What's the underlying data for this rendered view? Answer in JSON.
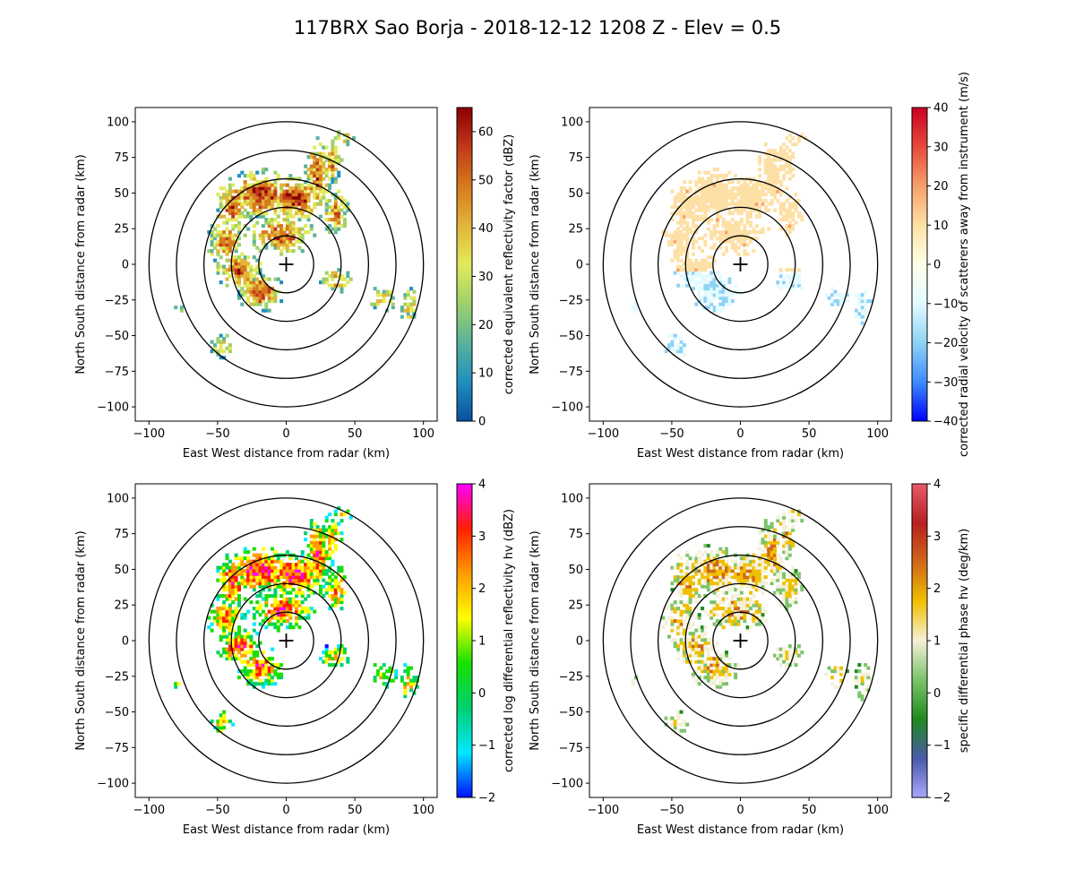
{
  "figure": {
    "title": "117BRX Sao Borja - 2018-12-12 1208 Z -  Elev = 0.5"
  },
  "chart_data": [
    {
      "type": "heatmap",
      "title": "",
      "xlabel": "East West distance from radar (km)",
      "ylabel": "North South distance from radar (km)",
      "xlim": [
        -110,
        110
      ],
      "ylim": [
        -110,
        110
      ],
      "xticks": [
        -100,
        -50,
        0,
        50,
        100
      ],
      "yticks": [
        -100,
        -75,
        -50,
        -25,
        0,
        25,
        50,
        75,
        100
      ],
      "range_rings_km": [
        20,
        40,
        60,
        80,
        100
      ],
      "colorbar": {
        "label": "corrected equivalent reflectivity factor (dBZ)",
        "range": [
          0,
          65
        ],
        "ticks": [
          0,
          10,
          20,
          30,
          40,
          50,
          60
        ],
        "colors": [
          "#0a4f9c",
          "#1f8fbf",
          "#5ab39a",
          "#9fd06b",
          "#e2ea5a",
          "#e2b43a",
          "#d67a1c",
          "#c0391a",
          "#8a0000"
        ]
      }
    },
    {
      "type": "heatmap",
      "title": "",
      "xlabel": "East West distance from radar (km)",
      "ylabel": "North South distance from radar (km)",
      "xlim": [
        -110,
        110
      ],
      "ylim": [
        -110,
        110
      ],
      "xticks": [
        -100,
        -50,
        0,
        50,
        100
      ],
      "yticks": [
        -100,
        -75,
        -50,
        -25,
        0,
        25,
        50,
        75,
        100
      ],
      "range_rings_km": [
        20,
        40,
        60,
        80,
        100
      ],
      "colorbar": {
        "label": "corrected radial velocity of scatterers away from instrument (m/s)",
        "range": [
          -40,
          40
        ],
        "ticks": [
          -40,
          -30,
          -20,
          -10,
          0,
          10,
          20,
          30,
          40
        ],
        "colors": [
          "#0000ff",
          "#3d8cff",
          "#8fd2f5",
          "#e2fbff",
          "#ffffe8",
          "#fde0a6",
          "#f7a06a",
          "#e64a3a",
          "#cc0022"
        ]
      }
    },
    {
      "type": "heatmap",
      "title": "",
      "xlabel": "East West distance from radar (km)",
      "ylabel": "North South distance from radar (km)",
      "xlim": [
        -110,
        110
      ],
      "ylim": [
        -110,
        110
      ],
      "xticks": [
        -100,
        -50,
        0,
        50,
        100
      ],
      "yticks": [
        -100,
        -75,
        -50,
        -25,
        0,
        25,
        50,
        75,
        100
      ],
      "range_rings_km": [
        20,
        40,
        60,
        80,
        100
      ],
      "colorbar": {
        "label": "corrected log differential reflectivity hv (dBZ)",
        "range": [
          -2,
          4
        ],
        "ticks": [
          -2,
          -1,
          0,
          1,
          2,
          3,
          4
        ],
        "colors": [
          "#0010ff",
          "#00e8ff",
          "#00d070",
          "#18e000",
          "#ffff00",
          "#ff9c00",
          "#ff1f00",
          "#ff00ff"
        ]
      }
    },
    {
      "type": "heatmap",
      "title": "",
      "xlabel": "East West distance from radar (km)",
      "ylabel": "North South distance from radar (km)",
      "xlim": [
        -110,
        110
      ],
      "ylim": [
        -110,
        110
      ],
      "xticks": [
        -100,
        -50,
        0,
        50,
        100
      ],
      "yticks": [
        -100,
        -75,
        -50,
        -25,
        0,
        25,
        50,
        75,
        100
      ],
      "range_rings_km": [
        20,
        40,
        60,
        80,
        100
      ],
      "colorbar": {
        "label": "specific differential phase hv (deg/km)",
        "range": [
          -2,
          4
        ],
        "ticks": [
          -2,
          -1,
          0,
          1,
          2,
          3,
          4
        ],
        "colors": [
          "#a8a8ff",
          "#4a5aa8",
          "#1f8a1f",
          "#7cc46a",
          "#f4f0d8",
          "#f0c000",
          "#d06818",
          "#b82020",
          "#e85a6a"
        ]
      }
    }
  ]
}
